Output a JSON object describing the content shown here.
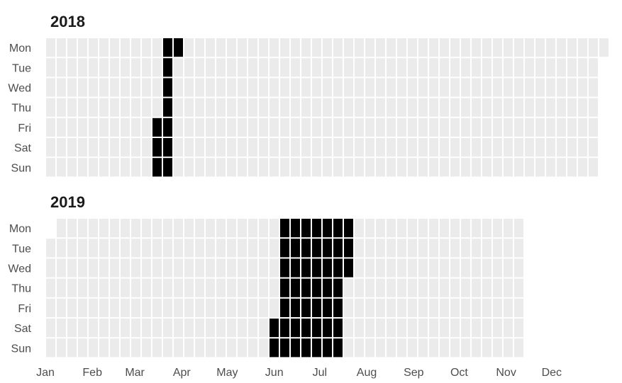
{
  "chart_data": {
    "type": "heatmap",
    "colors": {
      "empty": "#ebebeb",
      "active": "#000000",
      "gap": "#ffffff"
    },
    "day_labels": [
      "Mon",
      "Tue",
      "Wed",
      "Thu",
      "Fri",
      "Sat",
      "Sun"
    ],
    "month_labels": [
      "Jan",
      "Feb",
      "Mar",
      "Apr",
      "May",
      "Jun",
      "Jul",
      "Aug",
      "Sep",
      "Oct",
      "Nov",
      "Dec"
    ],
    "panels": [
      {
        "title": "2018",
        "year": 2018,
        "active_range": [
          "2018-03-16",
          "2018-03-26"
        ]
      },
      {
        "title": "2019",
        "year": 2019,
        "active_range": [
          "2019-06-01",
          "2019-07-17"
        ],
        "last_date": "2019-11-10"
      }
    ]
  }
}
